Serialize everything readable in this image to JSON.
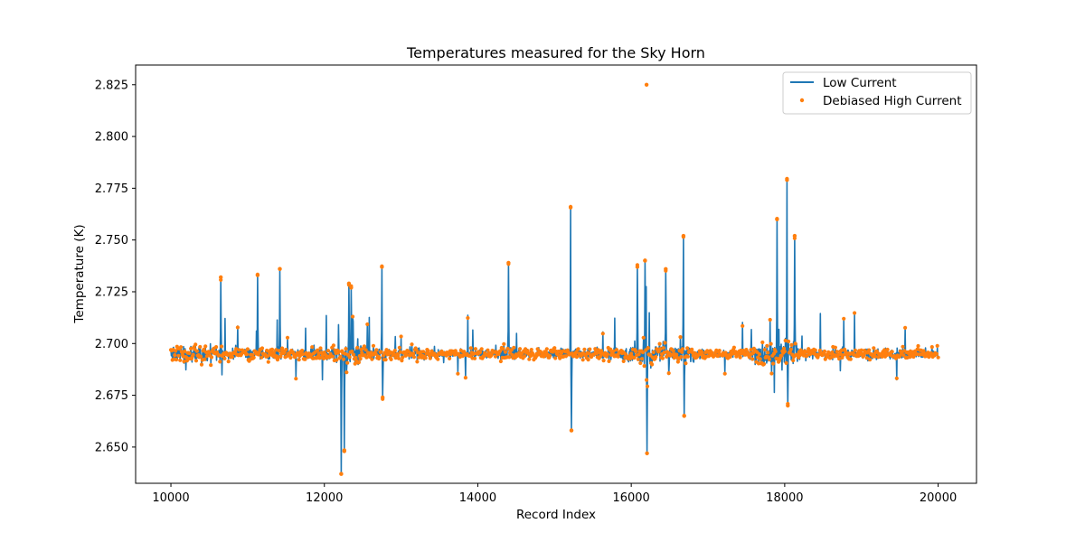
{
  "chart_data": {
    "type": "line",
    "title": "Temperatures measured for the Sky Horn",
    "xlabel": "Record Index",
    "ylabel": "Temperature (K)",
    "xlim": [
      9540,
      20500
    ],
    "ylim": [
      2.6325,
      2.8345
    ],
    "xticks": [
      10000,
      12000,
      14000,
      16000,
      18000,
      20000
    ],
    "yticks": [
      2.65,
      2.675,
      2.7,
      2.725,
      2.75,
      2.775,
      2.8,
      2.825
    ],
    "baseline": 2.695,
    "series": [
      {
        "name": "Low Current",
        "style": "line",
        "color": "#1f77b4"
      },
      {
        "name": "Debiased High Current",
        "style": "scatter",
        "color": "#ff7f0e"
      }
    ],
    "x_range": [
      10000,
      20000
    ],
    "n_points": 10000,
    "spikes": [
      {
        "x": 10650,
        "y": 2.732
      },
      {
        "x": 11130,
        "y": 2.733
      },
      {
        "x": 11420,
        "y": 2.736
      },
      {
        "x": 12220,
        "y": 2.637
      },
      {
        "x": 12260,
        "y": 2.648
      },
      {
        "x": 12320,
        "y": 2.729
      },
      {
        "x": 12350,
        "y": 2.727
      },
      {
        "x": 12750,
        "y": 2.737
      },
      {
        "x": 12760,
        "y": 2.674
      },
      {
        "x": 14400,
        "y": 2.739
      },
      {
        "x": 15210,
        "y": 2.766
      },
      {
        "x": 15220,
        "y": 2.658
      },
      {
        "x": 16080,
        "y": 2.737
      },
      {
        "x": 16180,
        "y": 2.74
      },
      {
        "x": 16200,
        "y": 2.825
      },
      {
        "x": 16205,
        "y": 2.647
      },
      {
        "x": 16450,
        "y": 2.736
      },
      {
        "x": 16680,
        "y": 2.752
      },
      {
        "x": 16690,
        "y": 2.665
      },
      {
        "x": 17900,
        "y": 2.76
      },
      {
        "x": 18030,
        "y": 2.779
      },
      {
        "x": 18040,
        "y": 2.67
      },
      {
        "x": 18130,
        "y": 2.752
      }
    ]
  }
}
